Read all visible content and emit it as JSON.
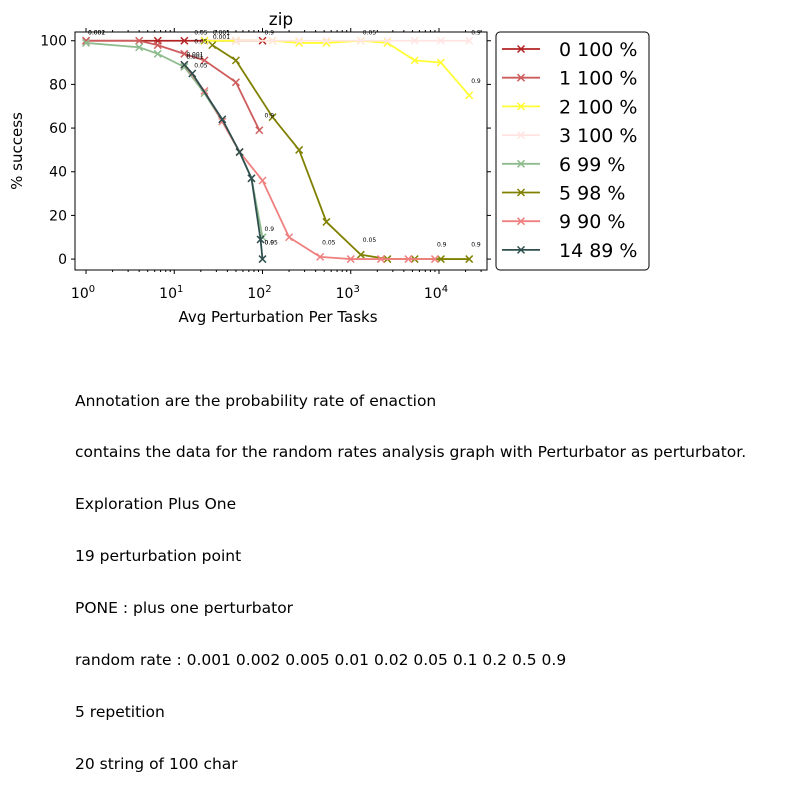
{
  "chart_data": {
    "type": "line",
    "title": "zip",
    "xlabel": "Avg Perturbation Per Tasks",
    "ylabel": "% success",
    "x_scale": "log",
    "xlim": [
      0.75,
      35000
    ],
    "ylim": [
      -5,
      104
    ],
    "x_ticks": [
      1,
      10,
      100,
      1000,
      10000
    ],
    "x_tick_labels": [
      [
        "10",
        "0"
      ],
      [
        "10",
        "1"
      ],
      [
        "10",
        "2"
      ],
      [
        "10",
        "3"
      ],
      [
        "10",
        "4"
      ]
    ],
    "y_ticks": [
      0,
      20,
      40,
      60,
      80,
      100
    ],
    "y_tick_labels": [
      "0",
      "20",
      "40",
      "60",
      "80",
      "100"
    ],
    "legend_position": "outside-right",
    "grid": false,
    "series": [
      {
        "name": "0 100 %",
        "color": "#b22222",
        "x": [
          1,
          6.5,
          13,
          22,
          50,
          100
        ],
        "y": [
          100,
          100,
          100,
          100,
          100,
          100
        ]
      },
      {
        "name": "1 100 %",
        "color": "#cd5c5c",
        "x": [
          1,
          4,
          6.5,
          13,
          22,
          50,
          92
        ],
        "y": [
          100,
          100,
          98,
          94,
          91,
          81,
          59
        ]
      },
      {
        "name": "2 100 %",
        "color": "#ffff33",
        "x": [
          22,
          50,
          130,
          260,
          530,
          1300,
          2600,
          5300,
          10500,
          22000
        ],
        "y": [
          100,
          100,
          100,
          99,
          99,
          100,
          99,
          91,
          90,
          75
        ]
      },
      {
        "name": "3 100 %",
        "color": "#ffe4e1",
        "x": [
          50,
          130,
          260,
          530,
          1300,
          2600,
          5300,
          10500,
          22000
        ],
        "y": [
          100,
          100,
          100,
          100,
          100,
          100,
          100,
          100,
          100
        ]
      },
      {
        "name": "6 99 %",
        "color": "#8fbc8f",
        "x": [
          1,
          4,
          6.5,
          13,
          22,
          35,
          55,
          75,
          100
        ],
        "y": [
          99,
          97,
          94,
          88,
          76,
          63,
          49,
          37,
          10
        ]
      },
      {
        "name": "5 98 %",
        "color": "#808000",
        "x": [
          27,
          50,
          130,
          260,
          530,
          1300,
          2600,
          5300,
          10500,
          22000
        ],
        "y": [
          98,
          91,
          65,
          50,
          17,
          2,
          0,
          0,
          0,
          0
        ]
      },
      {
        "name": "9 90 %",
        "color": "#f08080",
        "x": [
          13,
          22,
          35,
          55,
          100,
          200,
          450,
          1000,
          2200,
          4500,
          9000
        ],
        "y": [
          89,
          77,
          63,
          49,
          36,
          10,
          1,
          0,
          0,
          0,
          0
        ]
      },
      {
        "name": "14 89 %",
        "color": "#2f4f4f",
        "x": [
          13,
          16,
          35,
          55,
          75,
          95,
          100
        ],
        "y": [
          89,
          85,
          64,
          49,
          37,
          9,
          0
        ]
      }
    ],
    "annotations": [
      {
        "text": "0.001",
        "x": 1,
        "y": 100
      },
      {
        "text": "0.002",
        "x": 1,
        "y": 100
      },
      {
        "text": "0.05",
        "x": 16,
        "y": 100
      },
      {
        "text": "0.001",
        "x": 26,
        "y": 100
      },
      {
        "text": "0.001",
        "x": 26,
        "y": 98
      },
      {
        "text": "0.9",
        "x": 100,
        "y": 100
      },
      {
        "text": "0.05",
        "x": 1300,
        "y": 100
      },
      {
        "text": "0.9",
        "x": 22000,
        "y": 100
      },
      {
        "text": "0.05",
        "x": 16,
        "y": 96
      },
      {
        "text": "0.001",
        "x": 13,
        "y": 90
      },
      {
        "text": "0.001",
        "x": 13,
        "y": 89
      },
      {
        "text": "0.05",
        "x": 16,
        "y": 85
      },
      {
        "text": "0.9",
        "x": 100,
        "y": 62
      },
      {
        "text": "0.9",
        "x": 22000,
        "y": 78
      },
      {
        "text": "0.9",
        "x": 100,
        "y": 10
      },
      {
        "text": "0.9",
        "x": 100,
        "y": 4
      },
      {
        "text": "0.05",
        "x": 100,
        "y": 4
      },
      {
        "text": "0.05",
        "x": 450,
        "y": 4
      },
      {
        "text": "0.05",
        "x": 1300,
        "y": 5
      },
      {
        "text": "0.9",
        "x": 9000,
        "y": 3
      },
      {
        "text": "0.9",
        "x": 22000,
        "y": 3
      }
    ]
  },
  "notes": [
    "Annotation are the probability rate of enaction",
    "contains the data for the random rates analysis graph with Perturbator as perturbator.",
    "Exploration Plus One",
    "19 perturbation point",
    "PONE : plus one perturbator",
    "random rate : 0.001 0.002 0.005 0.01 0.02 0.05 0.1 0.2 0.5 0.9",
    "5 repetition",
    "20 string of 100 char"
  ]
}
